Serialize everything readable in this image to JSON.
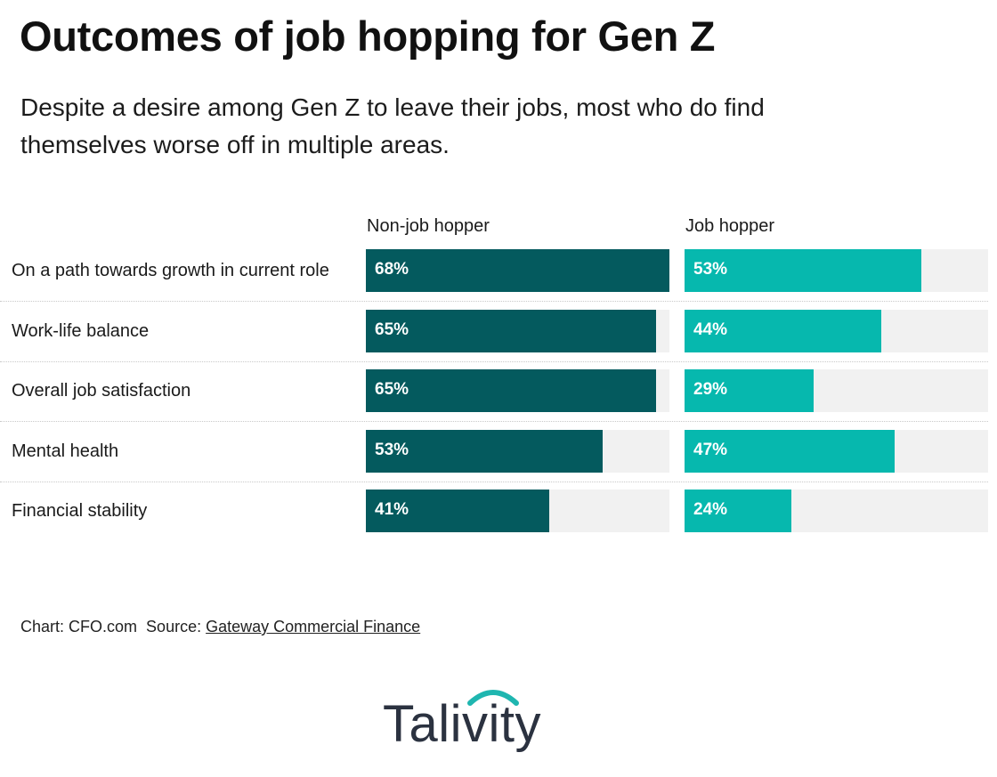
{
  "header": {
    "title": "Outcomes of job hopping for Gen Z",
    "subtitle": "Despite a desire among Gen Z to leave their jobs, most who do find themselves worse off in multiple areas."
  },
  "colors": {
    "non_job_hopper": "#045a5e",
    "job_hopper": "#06b8ae",
    "track": "#f1f1f1",
    "logo_arc": "#1fb6b0"
  },
  "chart_data": {
    "type": "bar",
    "orientation": "horizontal",
    "categories": [
      "On a path towards growth in current role",
      "Work-life balance",
      "Overall job satisfaction",
      "Mental health",
      "Financial stability"
    ],
    "series": [
      {
        "name": "Non-job hopper",
        "values": [
          68,
          65,
          65,
          53,
          41
        ],
        "labels": [
          "68%",
          "65%",
          "65%",
          "53%",
          "41%"
        ]
      },
      {
        "name": "Job hopper",
        "values": [
          53,
          44,
          29,
          47,
          24
        ],
        "labels": [
          "53%",
          "44%",
          "29%",
          "47%",
          "24%"
        ]
      }
    ],
    "xlim": [
      0,
      68
    ],
    "grid": false,
    "legend": "top (column headers)"
  },
  "footer": {
    "chart_credit": "Chart: CFO.com",
    "source_prefix": "Source:",
    "source_name": "Gateway Commercial Finance"
  },
  "logo": {
    "text": "Talivity"
  }
}
